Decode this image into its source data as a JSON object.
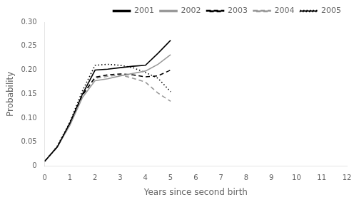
{
  "chart_data": {
    "type": "line",
    "xlabel": "Years since second birth",
    "ylabel": "Probability",
    "x": [
      0,
      0.5,
      1,
      1.5,
      2,
      2.5,
      3,
      3.5,
      4,
      4.5,
      5
    ],
    "series": [
      {
        "name": "2001",
        "color": "#000000",
        "line_style": "solid",
        "values": [
          0.01,
          0.04,
          0.09,
          0.15,
          0.2,
          0.202,
          0.205,
          0.208,
          0.21,
          0.235,
          0.262
        ]
      },
      {
        "name": "2002",
        "color": "#999999",
        "line_style": "solid",
        "values": [
          0.01,
          0.04,
          0.085,
          0.143,
          0.178,
          0.182,
          0.188,
          0.193,
          0.198,
          0.212,
          0.232
        ]
      },
      {
        "name": "2003",
        "color": "#000000",
        "line_style": "dashed",
        "values": [
          0.01,
          0.04,
          0.088,
          0.148,
          0.185,
          0.19,
          0.192,
          0.19,
          0.186,
          0.188,
          0.2
        ]
      },
      {
        "name": "2004",
        "color": "#999999",
        "line_style": "dashed",
        "values": [
          0.01,
          0.04,
          0.088,
          0.148,
          0.183,
          0.187,
          0.19,
          0.183,
          0.175,
          0.152,
          0.135
        ]
      },
      {
        "name": "2005",
        "color": "#000000",
        "line_style": "dotted",
        "values": [
          0.01,
          0.042,
          0.092,
          0.157,
          0.21,
          0.212,
          0.21,
          0.205,
          0.195,
          0.183,
          0.155
        ]
      }
    ],
    "xlim": [
      0,
      12
    ],
    "xticks": [
      0,
      1,
      2,
      3,
      4,
      5,
      6,
      7,
      8,
      9,
      10,
      11,
      12
    ],
    "ylim": [
      0,
      0.3
    ],
    "yticks": [
      0,
      0.05,
      {
        "value": 0.1,
        "label": "0.10"
      },
      0.15,
      {
        "value": 0.2,
        "label": "0.20"
      },
      0.25,
      {
        "value": 0.3,
        "label": "0.30"
      }
    ],
    "grid": false,
    "legend": "upper right"
  }
}
